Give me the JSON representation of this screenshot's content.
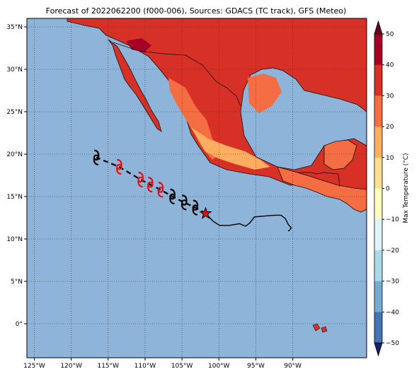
{
  "title": "Forecast of 2022062200 (f000-006), Sources: GDACS (TC track), GFS (Meteo)",
  "map": {
    "lon_range": [
      -126,
      -80
    ],
    "lat_range": [
      -4,
      36
    ],
    "ocean_color": "#8fb4d9",
    "gridlines": "dotted",
    "x_ticks": [
      "125°W",
      "120°W",
      "115°W",
      "110°W",
      "105°W",
      "100°W",
      "95°W",
      "90°W"
    ],
    "y_ticks": [
      "35°N",
      "30°N",
      "25°N",
      "20°N",
      "15°N",
      "10°N",
      "5°N",
      "0°"
    ]
  },
  "colorbar": {
    "label": "Max Temperature (°C)",
    "ticks": [
      "50",
      "40",
      "30",
      "20",
      "10",
      "0",
      "−10",
      "−20",
      "−30",
      "−40",
      "−50"
    ],
    "colors": [
      "#a50026",
      "#d73027",
      "#f46d43",
      "#fdae61",
      "#fee090",
      "#ffffbf",
      "#e0f3f8",
      "#abd9e9",
      "#74add1",
      "#4575b4",
      "#313695"
    ],
    "extend": "both"
  },
  "track": {
    "current_position": {
      "lon": -101.8,
      "lat": 13.0,
      "marker": "star",
      "color": "#e01010"
    },
    "forecast_points": [
      {
        "lon": -103.2,
        "lat": 13.7,
        "color": "#000000"
      },
      {
        "lon": -104.7,
        "lat": 14.3,
        "color": "#000000"
      },
      {
        "lon": -106.3,
        "lat": 15.0,
        "color": "#000000"
      },
      {
        "lon": -107.9,
        "lat": 15.8,
        "color": "#e01010"
      },
      {
        "lon": -109.3,
        "lat": 16.4,
        "color": "#e01010"
      },
      {
        "lon": -110.6,
        "lat": 17.0,
        "color": "#e01010"
      },
      {
        "lon": -113.5,
        "lat": 18.5,
        "color": "#e01010"
      },
      {
        "lon": -116.6,
        "lat": 19.6,
        "color": "#000000"
      }
    ],
    "past_track": [
      [
        -101.8,
        13.0
      ],
      [
        -100.8,
        12.1
      ],
      [
        -99.9,
        11.6
      ],
      [
        -98.6,
        11.6
      ],
      [
        -97.2,
        11.8
      ],
      [
        -96.4,
        11.5
      ],
      [
        -95.8,
        11.9
      ],
      [
        -95.2,
        12.6
      ],
      [
        -93.8,
        12.7
      ],
      [
        -92.5,
        12.8
      ],
      [
        -91.6,
        12.8
      ],
      [
        -91.0,
        12.4
      ],
      [
        -90.6,
        11.7
      ],
      [
        -90.2,
        11.3
      ],
      [
        -90.6,
        10.9
      ]
    ]
  }
}
